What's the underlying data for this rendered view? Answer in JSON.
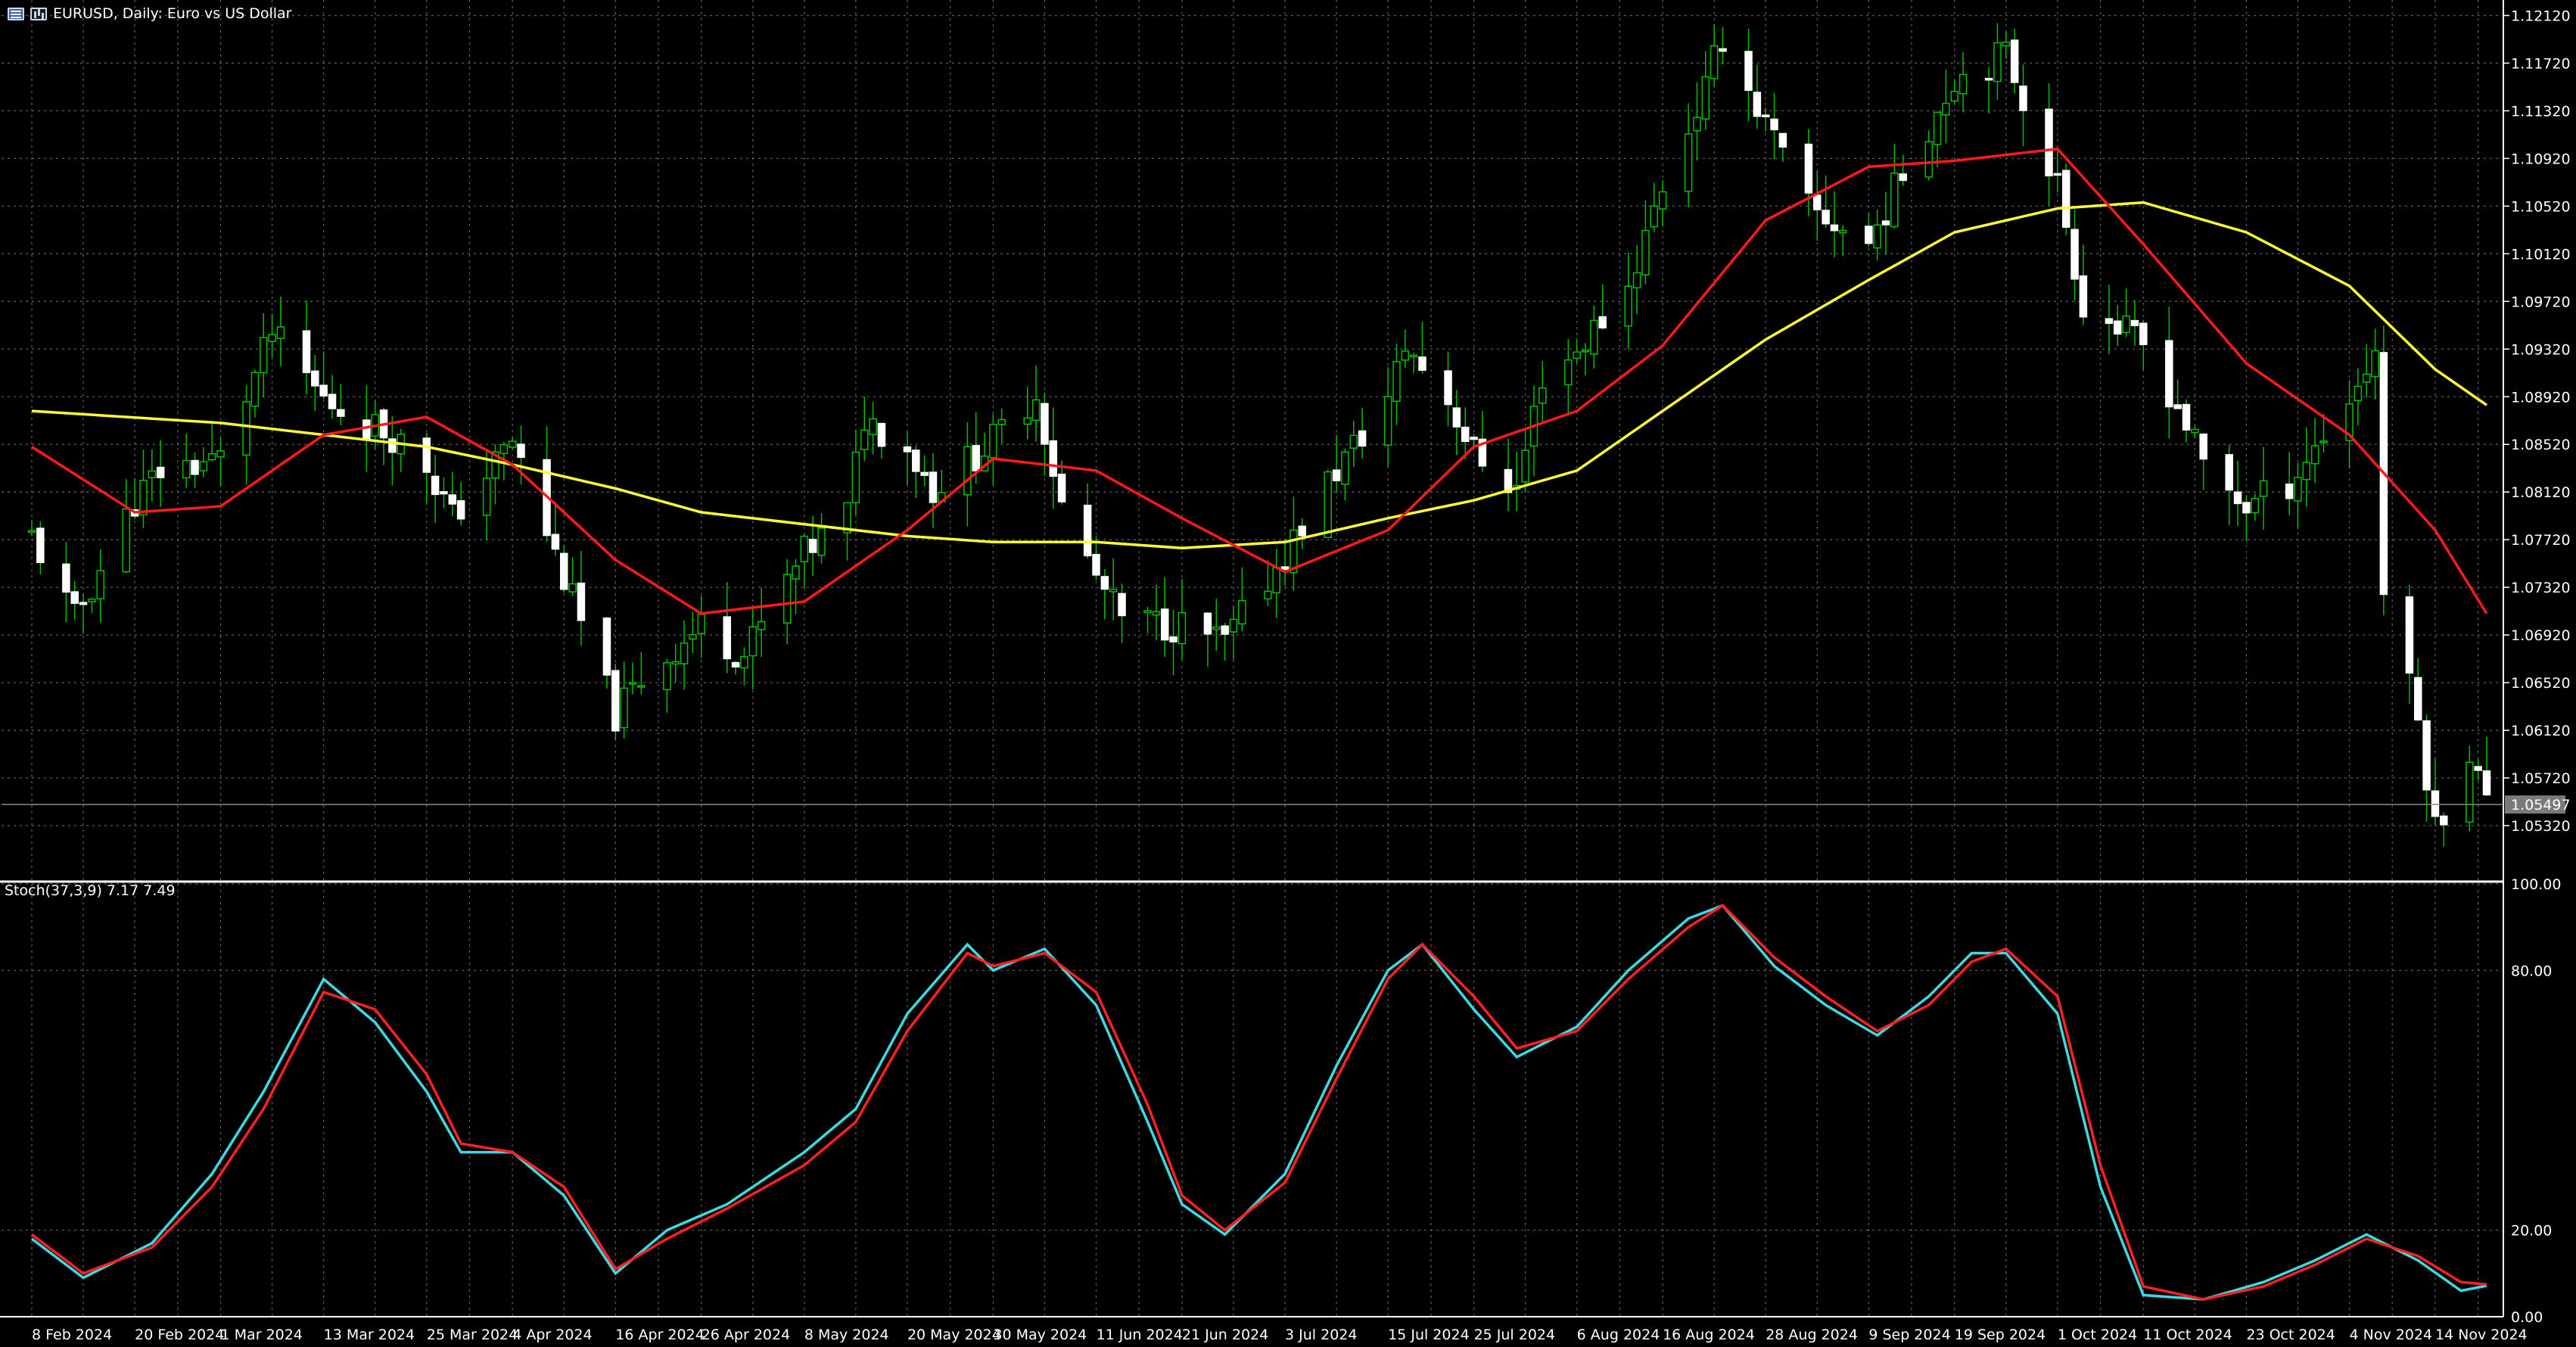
{
  "header": {
    "symbol": "EURUSD",
    "timeframe": "Daily",
    "description": "Euro vs US Dollar",
    "title": "EURUSD, Daily:  Euro vs US Dollar"
  },
  "indicator": {
    "label": "Stoch(37,3,9) 7.17 7.49"
  },
  "colors": {
    "background": "#000000",
    "grid": "#5a5a5a",
    "bull_candle": "#00c000",
    "bear_candle": "#ffffff",
    "ma_fast": "#ff1a1a",
    "ma_slow": "#ffff33",
    "stoch_main": "#3fd8e0",
    "stoch_signal": "#ff2020",
    "current_price_line": "#8a8a8a"
  },
  "chart_data": [
    {
      "type": "candlestick",
      "title": "EURUSD, Daily: Euro vs US Dollar",
      "xlabel": "",
      "ylabel": "",
      "ylim": [
        1.0485,
        1.1225
      ],
      "y_ticks": [
        "1.12120",
        "1.11720",
        "1.11320",
        "1.10920",
        "1.10520",
        "1.10120",
        "1.09720",
        "1.09320",
        "1.08920",
        "1.08520",
        "1.08120",
        "1.07720",
        "1.07320",
        "1.06920",
        "1.06520",
        "1.06120",
        "1.05720",
        "1.05320"
      ],
      "x_ticks": [
        "8 Feb 2024",
        "20 Feb 2024",
        "1 Mar 2024",
        "13 Mar 2024",
        "25 Mar 2024",
        "4 Apr 2024",
        "16 Apr 2024",
        "26 Apr 2024",
        "8 May 2024",
        "20 May 2024",
        "30 May 2024",
        "11 Jun 2024",
        "21 Jun 2024",
        "3 Jul 2024",
        "15 Jul 2024",
        "25 Jul 2024",
        "6 Aug 2024",
        "16 Aug 2024",
        "28 Aug 2024",
        "9 Sep 2024",
        "19 Sep 2024",
        "1 Oct 2024",
        "11 Oct 2024",
        "23 Oct 2024",
        "4 Nov 2024",
        "14 Nov 2024"
      ],
      "current_price": "1.05497",
      "close_path": [
        [
          "8 Feb 2024",
          1.0775
        ],
        [
          "13 Feb 2024",
          1.0705
        ],
        [
          "20 Feb 2024",
          1.0805
        ],
        [
          "23 Feb 2024",
          1.083
        ],
        [
          "1 Mar 2024",
          1.084
        ],
        [
          "7 Mar 2024",
          1.0945
        ],
        [
          "13 Mar 2024",
          1.089
        ],
        [
          "18 Mar 2024",
          1.087
        ],
        [
          "21 Mar 2024",
          1.086
        ],
        [
          "25 Mar 2024",
          1.0835
        ],
        [
          "28 Mar 2024",
          1.079
        ],
        [
          "4 Apr 2024",
          1.0855
        ],
        [
          "10 Apr 2024",
          1.074
        ],
        [
          "16 Apr 2024",
          1.0625
        ],
        [
          "19 Apr 2024",
          1.0655
        ],
        [
          "26 Apr 2024",
          1.07
        ],
        [
          "1 May 2024",
          1.0675
        ],
        [
          "8 May 2024",
          1.076
        ],
        [
          "13 May 2024",
          1.0795
        ],
        [
          "15 May 2024",
          1.0875
        ],
        [
          "20 May 2024",
          1.085
        ],
        [
          "23 May 2024",
          1.0815
        ],
        [
          "30 May 2024",
          1.0855
        ],
        [
          "4 Jun 2024",
          1.0895
        ],
        [
          "7 Jun 2024",
          1.08
        ],
        [
          "11 Jun 2024",
          1.074
        ],
        [
          "14 Jun 2024",
          1.0705
        ],
        [
          "21 Jun 2024",
          1.07
        ],
        [
          "26 Jun 2024",
          1.0685
        ],
        [
          "3 Jul 2024",
          1.076
        ],
        [
          "8 Jul 2024",
          1.082
        ],
        [
          "15 Jul 2024",
          1.089
        ],
        [
          "17 Jul 2024",
          1.0935
        ],
        [
          "22 Jul 2024",
          1.089
        ],
        [
          "25 Jul 2024",
          1.0845
        ],
        [
          "30 Jul 2024",
          1.0815
        ],
        [
          "2 Aug 2024",
          1.091
        ],
        [
          "6 Aug 2024",
          1.093
        ],
        [
          "12 Aug 2024",
          1.0985
        ],
        [
          "16 Aug 2024",
          1.107
        ],
        [
          "21 Aug 2024",
          1.115
        ],
        [
          "23 Aug 2024",
          1.1195
        ],
        [
          "28 Aug 2024",
          1.112
        ],
        [
          "2 Sep 2024",
          1.105
        ],
        [
          "9 Sep 2024",
          1.102
        ],
        [
          "13 Sep 2024",
          1.108
        ],
        [
          "19 Sep 2024",
          1.116
        ],
        [
          "25 Sep 2024",
          1.118
        ],
        [
          "1 Oct 2024",
          1.107
        ],
        [
          "4 Oct 2024",
          1.097
        ],
        [
          "11 Oct 2024",
          1.0935
        ],
        [
          "15 Oct 2024",
          1.0885
        ],
        [
          "18 Oct 2024",
          1.0835
        ],
        [
          "23 Oct 2024",
          1.08
        ],
        [
          "28 Oct 2024",
          1.082
        ],
        [
          "4 Nov 2024",
          1.089
        ],
        [
          "7 Nov 2024",
          1.093
        ],
        [
          "8 Nov 2024",
          1.073
        ],
        [
          "12 Nov 2024",
          1.062
        ],
        [
          "14 Nov 2024",
          1.053
        ],
        [
          "18 Nov 2024",
          1.0595
        ],
        [
          "20 Nov 2024",
          1.055
        ]
      ],
      "series": [
        {
          "name": "",
          "values": [
            [
              "8 Feb 2024",
              1.088
            ],
            [
              "1 Mar 2024",
              1.087
            ],
            [
              "13 Mar 2024",
              1.086
            ],
            [
              "25 Mar 2024",
              1.085
            ],
            [
              "4 Apr 2024",
              1.0835
            ],
            [
              "16 Apr 2024",
              1.0815
            ],
            [
              "26 Apr 2024",
              1.0795
            ],
            [
              "8 May 2024",
              1.0785
            ],
            [
              "20 May 2024",
              1.0775
            ],
            [
              "30 May 2024",
              1.077
            ],
            [
              "11 Jun 2024",
              1.077
            ],
            [
              "21 Jun 2024",
              1.0765
            ],
            [
              "3 Jul 2024",
              1.077
            ],
            [
              "15 Jul 2024",
              1.079
            ],
            [
              "25 Jul 2024",
              1.0805
            ],
            [
              "6 Aug 2024",
              1.083
            ],
            [
              "16 Aug 2024",
              1.088
            ],
            [
              "28 Aug 2024",
              1.094
            ],
            [
              "9 Sep 2024",
              1.099
            ],
            [
              "19 Sep 2024",
              1.103
            ],
            [
              "1 Oct 2024",
              1.105
            ],
            [
              "11 Oct 2024",
              1.1055
            ],
            [
              "23 Oct 2024",
              1.103
            ],
            [
              "4 Nov 2024",
              1.0985
            ],
            [
              "14 Nov 2024",
              1.0915
            ],
            [
              "20 Nov 2024",
              1.0885
            ]
          ]
        },
        {
          "name": "",
          "values": [
            [
              "8 Feb 2024",
              1.085
            ],
            [
              "20 Feb 2024",
              1.0795
            ],
            [
              "1 Mar 2024",
              1.08
            ],
            [
              "13 Mar 2024",
              1.086
            ],
            [
              "25 Mar 2024",
              1.0875
            ],
            [
              "4 Apr 2024",
              1.0835
            ],
            [
              "16 Apr 2024",
              1.0755
            ],
            [
              "26 Apr 2024",
              1.071
            ],
            [
              "8 May 2024",
              1.072
            ],
            [
              "20 May 2024",
              1.078
            ],
            [
              "30 May 2024",
              1.084
            ],
            [
              "11 Jun 2024",
              1.083
            ],
            [
              "21 Jun 2024",
              1.079
            ],
            [
              "3 Jul 2024",
              1.0745
            ],
            [
              "15 Jul 2024",
              1.078
            ],
            [
              "25 Jul 2024",
              1.085
            ],
            [
              "6 Aug 2024",
              1.088
            ],
            [
              "16 Aug 2024",
              1.0935
            ],
            [
              "28 Aug 2024",
              1.104
            ],
            [
              "9 Sep 2024",
              1.1085
            ],
            [
              "19 Sep 2024",
              1.109
            ],
            [
              "1 Oct 2024",
              1.11
            ],
            [
              "11 Oct 2024",
              1.102
            ],
            [
              "23 Oct 2024",
              1.092
            ],
            [
              "4 Nov 2024",
              1.086
            ],
            [
              "14 Nov 2024",
              1.078
            ],
            [
              "20 Nov 2024",
              1.071
            ]
          ]
        }
      ]
    },
    {
      "type": "line",
      "title": "Stoch(37,3,9) 7.17 7.49",
      "xlabel": "",
      "ylabel": "",
      "ylim": [
        0,
        100
      ],
      "y_ticks": [
        "100.00",
        "80.00",
        "20.00",
        "0.00"
      ],
      "series": [
        {
          "name": "",
          "values": [
            [
              "8 Feb 2024",
              18
            ],
            [
              "14 Feb 2024",
              9
            ],
            [
              "22 Feb 2024",
              17
            ],
            [
              "29 Feb 2024",
              33
            ],
            [
              "6 Mar 2024",
              52
            ],
            [
              "13 Mar 2024",
              78
            ],
            [
              "19 Mar 2024",
              68
            ],
            [
              "25 Mar 2024",
              52
            ],
            [
              "29 Mar 2024",
              38
            ],
            [
              "4 Apr 2024",
              38
            ],
            [
              "10 Apr 2024",
              28
            ],
            [
              "16 Apr 2024",
              10
            ],
            [
              "22 Apr 2024",
              20
            ],
            [
              "29 Apr 2024",
              26
            ],
            [
              "8 May 2024",
              38
            ],
            [
              "14 May 2024",
              48
            ],
            [
              "20 May 2024",
              70
            ],
            [
              "27 May 2024",
              86
            ],
            [
              "30 May 2024",
              80
            ],
            [
              "5 Jun 2024",
              85
            ],
            [
              "11 Jun 2024",
              72
            ],
            [
              "17 Jun 2024",
              45
            ],
            [
              "21 Jun 2024",
              26
            ],
            [
              "26 Jun 2024",
              19
            ],
            [
              "3 Jul 2024",
              33
            ],
            [
              "9 Jul 2024",
              58
            ],
            [
              "15 Jul 2024",
              80
            ],
            [
              "19 Jul 2024",
              86
            ],
            [
              "25 Jul 2024",
              71
            ],
            [
              "30 Jul 2024",
              60
            ],
            [
              "6 Aug 2024",
              67
            ],
            [
              "12 Aug 2024",
              80
            ],
            [
              "19 Aug 2024",
              92
            ],
            [
              "23 Aug 2024",
              95
            ],
            [
              "29 Aug 2024",
              81
            ],
            [
              "4 Sep 2024",
              72
            ],
            [
              "10 Sep 2024",
              65
            ],
            [
              "16 Sep 2024",
              74
            ],
            [
              "21 Sep 2024",
              84
            ],
            [
              "25 Sep 2024",
              84
            ],
            [
              "1 Oct 2024",
              70
            ],
            [
              "6 Oct 2024",
              30
            ],
            [
              "11 Oct 2024",
              5
            ],
            [
              "18 Oct 2024",
              4
            ],
            [
              "25 Oct 2024",
              8
            ],
            [
              "31 Oct 2024",
              13
            ],
            [
              "6 Nov 2024",
              19
            ],
            [
              "12 Nov 2024",
              13
            ],
            [
              "17 Nov 2024",
              6
            ],
            [
              "20 Nov 2024",
              7.17
            ]
          ]
        },
        {
          "name": "",
          "values": [
            [
              "8 Feb 2024",
              19
            ],
            [
              "14 Feb 2024",
              10
            ],
            [
              "22 Feb 2024",
              16
            ],
            [
              "29 Feb 2024",
              30
            ],
            [
              "6 Mar 2024",
              48
            ],
            [
              "13 Mar 2024",
              75
            ],
            [
              "19 Mar 2024",
              71
            ],
            [
              "25 Mar 2024",
              56
            ],
            [
              "29 Mar 2024",
              40
            ],
            [
              "4 Apr 2024",
              38
            ],
            [
              "10 Apr 2024",
              30
            ],
            [
              "16 Apr 2024",
              11
            ],
            [
              "22 Apr 2024",
              18
            ],
            [
              "29 Apr 2024",
              25
            ],
            [
              "8 May 2024",
              35
            ],
            [
              "14 May 2024",
              45
            ],
            [
              "20 May 2024",
              66
            ],
            [
              "27 May 2024",
              84
            ],
            [
              "30 May 2024",
              81
            ],
            [
              "5 Jun 2024",
              84
            ],
            [
              "11 Jun 2024",
              75
            ],
            [
              "17 Jun 2024",
              49
            ],
            [
              "21 Jun 2024",
              28
            ],
            [
              "26 Jun 2024",
              20
            ],
            [
              "3 Jul 2024",
              31
            ],
            [
              "9 Jul 2024",
              55
            ],
            [
              "15 Jul 2024",
              78
            ],
            [
              "19 Jul 2024",
              86
            ],
            [
              "25 Jul 2024",
              74
            ],
            [
              "30 Jul 2024",
              62
            ],
            [
              "6 Aug 2024",
              66
            ],
            [
              "12 Aug 2024",
              78
            ],
            [
              "19 Aug 2024",
              90
            ],
            [
              "23 Aug 2024",
              95
            ],
            [
              "29 Aug 2024",
              83
            ],
            [
              "4 Sep 2024",
              74
            ],
            [
              "10 Sep 2024",
              66
            ],
            [
              "16 Sep 2024",
              72
            ],
            [
              "21 Sep 2024",
              82
            ],
            [
              "25 Sep 2024",
              85
            ],
            [
              "1 Oct 2024",
              74
            ],
            [
              "6 Oct 2024",
              35
            ],
            [
              "11 Oct 2024",
              7
            ],
            [
              "18 Oct 2024",
              4
            ],
            [
              "25 Oct 2024",
              7
            ],
            [
              "31 Oct 2024",
              12
            ],
            [
              "6 Nov 2024",
              18
            ],
            [
              "12 Nov 2024",
              14
            ],
            [
              "17 Nov 2024",
              8
            ],
            [
              "20 Nov 2024",
              7.49
            ]
          ]
        }
      ]
    }
  ]
}
